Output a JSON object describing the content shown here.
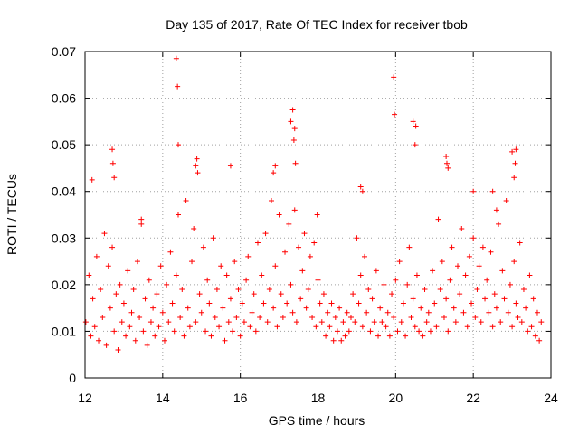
{
  "chart_data": {
    "type": "scatter",
    "title": "Day 135 of 2017, Rate Of TEC Index for receiver tbob",
    "xlabel": "GPS time / hours",
    "ylabel": "ROTI / TECUs",
    "xlim": [
      12,
      24
    ],
    "ylim": [
      0,
      0.07
    ],
    "xticks": [
      "12",
      "14",
      "16",
      "18",
      "20",
      "22",
      "24"
    ],
    "xtick_values": [
      12,
      14,
      16,
      18,
      20,
      22,
      24
    ],
    "yticks": [
      "0",
      "0.01",
      "0.02",
      "0.03",
      "0.04",
      "0.05",
      "0.06",
      "0.07"
    ],
    "ytick_values": [
      0,
      0.01,
      0.02,
      0.03,
      0.04,
      0.05,
      0.06,
      0.07
    ],
    "grid": true,
    "marker": "+",
    "color": "#ff0000",
    "series": [
      {
        "name": "ROTI",
        "x": [
          12.02,
          12.1,
          12.15,
          12.2,
          12.25,
          12.3,
          12.35,
          12.4,
          12.45,
          12.5,
          12.55,
          12.6,
          12.65,
          12.7,
          12.75,
          12.8,
          12.85,
          12.9,
          12.95,
          13.0,
          13.05,
          13.1,
          13.15,
          13.2,
          13.25,
          13.3,
          13.35,
          13.4,
          13.45,
          13.5,
          13.55,
          13.6,
          13.65,
          13.7,
          13.75,
          13.8,
          13.85,
          13.9,
          13.95,
          14.0,
          14.05,
          14.1,
          14.15,
          14.2,
          14.25,
          14.3,
          14.35,
          14.4,
          14.45,
          14.5,
          14.55,
          14.6,
          14.65,
          14.7,
          14.75,
          14.8,
          14.85,
          14.9,
          14.95,
          15.0,
          15.05,
          15.1,
          15.15,
          15.2,
          15.25,
          15.3,
          15.35,
          15.4,
          15.45,
          15.5,
          15.55,
          15.6,
          15.65,
          15.7,
          15.75,
          15.8,
          15.85,
          15.9,
          15.95,
          16.0,
          16.05,
          16.1,
          16.15,
          16.2,
          16.25,
          16.3,
          16.35,
          16.4,
          16.45,
          16.5,
          16.55,
          16.6,
          16.65,
          16.7,
          16.75,
          16.8,
          16.85,
          16.9,
          16.95,
          17.0,
          17.05,
          17.1,
          17.15,
          17.2,
          17.25,
          17.3,
          17.35,
          17.4,
          17.45,
          17.5,
          17.55,
          17.6,
          17.65,
          17.7,
          17.75,
          17.8,
          17.85,
          17.9,
          17.95,
          18.0,
          18.05,
          18.1,
          18.15,
          18.2,
          18.25,
          18.3,
          18.35,
          18.4,
          18.45,
          18.5,
          18.55,
          18.6,
          18.65,
          18.7,
          18.75,
          18.8,
          18.85,
          18.9,
          18.95,
          19.0,
          19.05,
          19.1,
          19.15,
          19.2,
          19.25,
          19.3,
          19.35,
          19.4,
          19.45,
          19.5,
          19.55,
          19.6,
          19.65,
          19.7,
          19.75,
          19.8,
          19.85,
          19.9,
          19.95,
          20.0,
          20.05,
          20.1,
          20.15,
          20.2,
          20.25,
          20.3,
          20.35,
          20.4,
          20.45,
          20.5,
          20.55,
          20.6,
          20.65,
          20.7,
          20.75,
          20.8,
          20.85,
          20.9,
          20.95,
          21.0,
          21.05,
          21.1,
          21.15,
          21.2,
          21.25,
          21.3,
          21.35,
          21.4,
          21.45,
          21.5,
          21.55,
          21.6,
          21.65,
          21.7,
          21.75,
          21.8,
          21.85,
          21.9,
          21.95,
          22.0,
          22.05,
          22.1,
          22.15,
          22.2,
          22.25,
          22.3,
          22.35,
          22.4,
          22.45,
          22.5,
          22.55,
          22.6,
          22.65,
          22.7,
          22.75,
          22.8,
          22.85,
          22.9,
          22.95,
          23.0,
          23.05,
          23.1,
          23.15,
          23.2,
          23.25,
          23.3,
          23.35,
          23.4,
          23.45,
          23.5,
          23.55,
          23.6,
          23.65,
          23.7,
          23.75,
          12.18,
          12.7,
          12.72,
          12.75,
          13.45,
          14.35,
          14.38,
          14.4,
          14.85,
          14.88,
          15.75,
          16.85,
          16.9,
          17.3,
          17.35,
          17.38,
          17.4,
          17.42,
          17.98,
          19.1,
          19.15,
          19.95,
          19.97,
          20.45,
          20.5,
          20.52,
          21.3,
          21.32,
          21.35,
          22.0,
          22.5,
          22.6,
          23.0,
          23.05,
          23.08,
          23.1
        ],
        "y": [
          0.012,
          0.022,
          0.009,
          0.017,
          0.011,
          0.026,
          0.008,
          0.019,
          0.013,
          0.031,
          0.007,
          0.024,
          0.015,
          0.028,
          0.01,
          0.018,
          0.006,
          0.02,
          0.012,
          0.016,
          0.009,
          0.023,
          0.011,
          0.014,
          0.019,
          0.008,
          0.025,
          0.013,
          0.033,
          0.01,
          0.017,
          0.007,
          0.021,
          0.012,
          0.015,
          0.009,
          0.018,
          0.011,
          0.024,
          0.014,
          0.008,
          0.02,
          0.012,
          0.027,
          0.016,
          0.01,
          0.022,
          0.035,
          0.013,
          0.019,
          0.009,
          0.038,
          0.015,
          0.011,
          0.025,
          0.032,
          0.012,
          0.044,
          0.018,
          0.014,
          0.028,
          0.01,
          0.021,
          0.016,
          0.009,
          0.03,
          0.013,
          0.019,
          0.011,
          0.024,
          0.015,
          0.008,
          0.022,
          0.012,
          0.017,
          0.01,
          0.025,
          0.013,
          0.019,
          0.009,
          0.016,
          0.012,
          0.021,
          0.026,
          0.011,
          0.014,
          0.018,
          0.01,
          0.029,
          0.013,
          0.022,
          0.016,
          0.031,
          0.012,
          0.019,
          0.038,
          0.015,
          0.024,
          0.011,
          0.035,
          0.018,
          0.013,
          0.027,
          0.016,
          0.033,
          0.02,
          0.014,
          0.036,
          0.012,
          0.028,
          0.017,
          0.023,
          0.031,
          0.015,
          0.019,
          0.026,
          0.013,
          0.029,
          0.011,
          0.021,
          0.016,
          0.012,
          0.018,
          0.009,
          0.014,
          0.011,
          0.016,
          0.008,
          0.013,
          0.01,
          0.015,
          0.008,
          0.012,
          0.009,
          0.014,
          0.01,
          0.013,
          0.018,
          0.012,
          0.03,
          0.016,
          0.022,
          0.011,
          0.026,
          0.014,
          0.019,
          0.01,
          0.017,
          0.012,
          0.023,
          0.009,
          0.015,
          0.012,
          0.02,
          0.011,
          0.014,
          0.009,
          0.018,
          0.013,
          0.021,
          0.01,
          0.025,
          0.012,
          0.016,
          0.009,
          0.02,
          0.028,
          0.013,
          0.017,
          0.011,
          0.022,
          0.01,
          0.015,
          0.009,
          0.019,
          0.012,
          0.014,
          0.01,
          0.023,
          0.016,
          0.011,
          0.034,
          0.019,
          0.025,
          0.013,
          0.017,
          0.01,
          0.021,
          0.028,
          0.015,
          0.012,
          0.024,
          0.018,
          0.032,
          0.014,
          0.022,
          0.011,
          0.026,
          0.016,
          0.03,
          0.013,
          0.019,
          0.024,
          0.012,
          0.028,
          0.017,
          0.021,
          0.014,
          0.027,
          0.011,
          0.018,
          0.015,
          0.033,
          0.012,
          0.023,
          0.017,
          0.038,
          0.014,
          0.02,
          0.011,
          0.025,
          0.016,
          0.013,
          0.029,
          0.012,
          0.019,
          0.015,
          0.01,
          0.022,
          0.011,
          0.017,
          0.009,
          0.014,
          0.008,
          0.012,
          0.0425,
          0.049,
          0.046,
          0.043,
          0.034,
          0.0685,
          0.0625,
          0.05,
          0.0455,
          0.047,
          0.0455,
          0.044,
          0.0455,
          0.055,
          0.0575,
          0.051,
          0.0535,
          0.046,
          0.035,
          0.041,
          0.04,
          0.0645,
          0.0565,
          0.055,
          0.05,
          0.054,
          0.0475,
          0.046,
          0.045,
          0.04,
          0.04,
          0.036,
          0.0485,
          0.043,
          0.046,
          0.049
        ]
      }
    ]
  }
}
